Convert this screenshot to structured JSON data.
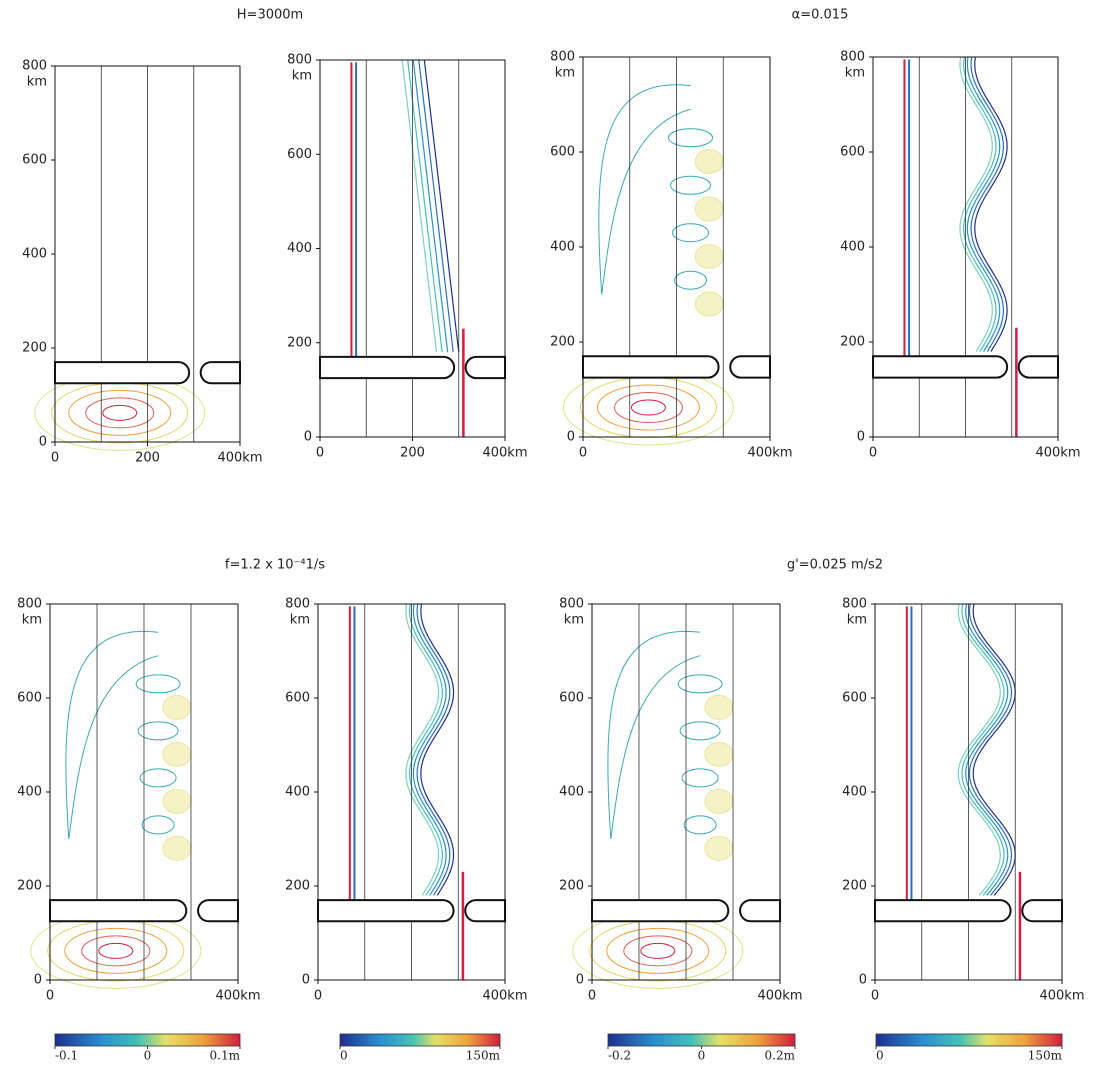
{
  "chart_data": [
    {
      "type": "contour",
      "title": "H=3000m",
      "xlim": [
        0,
        400
      ],
      "xticks": [
        0,
        200,
        {
          "value": 400,
          "label": "400km"
        }
      ],
      "ylim": [
        0,
        800
      ],
      "yticks": [
        0,
        200,
        400,
        600,
        800
      ],
      "y_unit": "km"
    },
    {
      "type": "contour",
      "xlim": [
        0,
        400
      ],
      "xticks": [
        0,
        200,
        {
          "value": 400,
          "label": "400km"
        }
      ],
      "ylim": [
        0,
        800
      ],
      "yticks": [
        0,
        200,
        400,
        600,
        800
      ],
      "y_unit": "km"
    },
    {
      "type": "contour",
      "title": "α=0.015",
      "xlim": [
        0,
        400
      ],
      "xticks": [
        0,
        {
          "value": 400,
          "label": "400km"
        }
      ],
      "ylim": [
        0,
        800
      ],
      "yticks": [
        0,
        200,
        400,
        600,
        800
      ],
      "y_unit": "km"
    },
    {
      "type": "contour",
      "xlim": [
        0,
        400
      ],
      "xticks": [
        0,
        {
          "value": 400,
          "label": "400km"
        }
      ],
      "ylim": [
        0,
        800
      ],
      "yticks": [
        0,
        200,
        400,
        600,
        800
      ],
      "y_unit": "km"
    },
    {
      "type": "contour",
      "title": "f=1.2 x 10⁻⁴1/s",
      "xlim": [
        0,
        400
      ],
      "xticks": [
        0,
        {
          "value": 400,
          "label": "400km"
        }
      ],
      "ylim": [
        0,
        800
      ],
      "yticks": [
        0,
        200,
        400,
        600,
        800
      ],
      "y_unit": "km"
    },
    {
      "type": "contour",
      "xlim": [
        0,
        400
      ],
      "xticks": [
        0,
        {
          "value": 400,
          "label": "400km"
        }
      ],
      "ylim": [
        0,
        800
      ],
      "yticks": [
        0,
        200,
        400,
        600,
        800
      ],
      "y_unit": "km"
    },
    {
      "type": "contour",
      "title": "g'=0.025 m/s2",
      "xlim": [
        0,
        400
      ],
      "xticks": [
        0,
        {
          "value": 400,
          "label": "400km"
        }
      ],
      "ylim": [
        0,
        800
      ],
      "yticks": [
        0,
        200,
        400,
        600,
        800
      ],
      "y_unit": "km"
    },
    {
      "type": "contour",
      "xlim": [
        0,
        400
      ],
      "xticks": [
        0,
        {
          "value": 400,
          "label": "400km"
        }
      ],
      "ylim": [
        0,
        800
      ],
      "yticks": [
        0,
        200,
        400,
        600,
        800
      ],
      "y_unit": "km"
    }
  ],
  "colorbars": [
    {
      "lim": [
        -0.1,
        0.1
      ],
      "ticks": [
        -0.1,
        0,
        {
          "value": 0.1,
          "label": "0.1m"
        }
      ]
    },
    {
      "lim": [
        0,
        150
      ],
      "ticks": [
        0,
        {
          "value": 150,
          "label": "150m"
        }
      ]
    },
    {
      "lim": [
        -0.2,
        0.2
      ],
      "ticks": [
        -0.2,
        0,
        {
          "value": 0.2,
          "label": "0.2m"
        }
      ]
    },
    {
      "lim": [
        0,
        150
      ],
      "ticks": [
        0,
        {
          "value": 150,
          "label": "150m"
        }
      ]
    }
  ]
}
